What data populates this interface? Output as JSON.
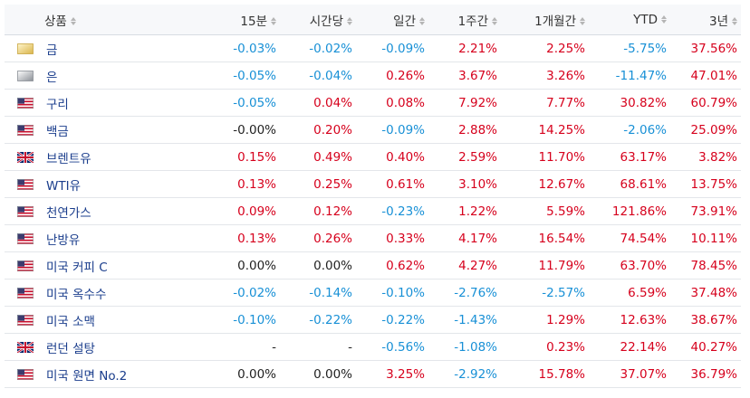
{
  "headers": [
    "상품",
    "15분",
    "시간당",
    "일간",
    "1주간",
    "1개월간",
    "YTD",
    "3년"
  ],
  "rows": [
    {
      "name": "금",
      "flag": "gold",
      "v": [
        "-0.03%",
        "-0.02%",
        "-0.09%",
        "2.21%",
        "2.25%",
        "-5.75%",
        "37.56%"
      ]
    },
    {
      "name": "은",
      "flag": "silver",
      "v": [
        "-0.05%",
        "-0.04%",
        "0.26%",
        "3.67%",
        "3.26%",
        "-11.47%",
        "47.01%"
      ]
    },
    {
      "name": "구리",
      "flag": "us",
      "v": [
        "-0.05%",
        "0.04%",
        "0.08%",
        "7.92%",
        "7.77%",
        "30.82%",
        "60.79%"
      ]
    },
    {
      "name": "백금",
      "flag": "us",
      "v": [
        "-0.00%",
        "0.20%",
        "-0.09%",
        "2.88%",
        "14.25%",
        "-2.06%",
        "25.09%"
      ]
    },
    {
      "name": "브렌트유",
      "flag": "uk",
      "v": [
        "0.15%",
        "0.49%",
        "0.40%",
        "2.59%",
        "11.70%",
        "63.17%",
        "3.82%"
      ]
    },
    {
      "name": "WTI유",
      "flag": "us",
      "v": [
        "0.13%",
        "0.25%",
        "0.61%",
        "3.10%",
        "12.67%",
        "68.61%",
        "13.75%"
      ]
    },
    {
      "name": "천연가스",
      "flag": "us",
      "v": [
        "0.09%",
        "0.12%",
        "-0.23%",
        "1.22%",
        "5.59%",
        "121.86%",
        "73.91%"
      ]
    },
    {
      "name": "난방유",
      "flag": "us",
      "v": [
        "0.13%",
        "0.26%",
        "0.33%",
        "4.17%",
        "16.54%",
        "74.54%",
        "10.11%"
      ]
    },
    {
      "name": "미국 커피 C",
      "flag": "us",
      "v": [
        "0.00%",
        "0.00%",
        "0.62%",
        "4.27%",
        "11.79%",
        "63.70%",
        "78.45%"
      ]
    },
    {
      "name": "미국 옥수수",
      "flag": "us",
      "v": [
        "-0.02%",
        "-0.14%",
        "-0.10%",
        "-2.76%",
        "-2.57%",
        "6.59%",
        "37.48%"
      ]
    },
    {
      "name": "미국 소맥",
      "flag": "us",
      "v": [
        "-0.10%",
        "-0.22%",
        "-0.22%",
        "-1.43%",
        "1.29%",
        "12.63%",
        "38.67%"
      ]
    },
    {
      "name": "런던 설탕",
      "flag": "uk",
      "v": [
        "-",
        "-",
        "-0.56%",
        "-1.08%",
        "0.23%",
        "22.14%",
        "40.27%"
      ]
    },
    {
      "name": "미국 원면 No.2",
      "flag": "us",
      "v": [
        "0.00%",
        "0.00%",
        "3.25%",
        "-2.92%",
        "15.78%",
        "37.07%",
        "36.79%"
      ]
    }
  ],
  "colors": {
    "positive": "#d6001c",
    "negative": "#1890d6",
    "neutral": "#222222",
    "link": "#1a3d8c"
  }
}
